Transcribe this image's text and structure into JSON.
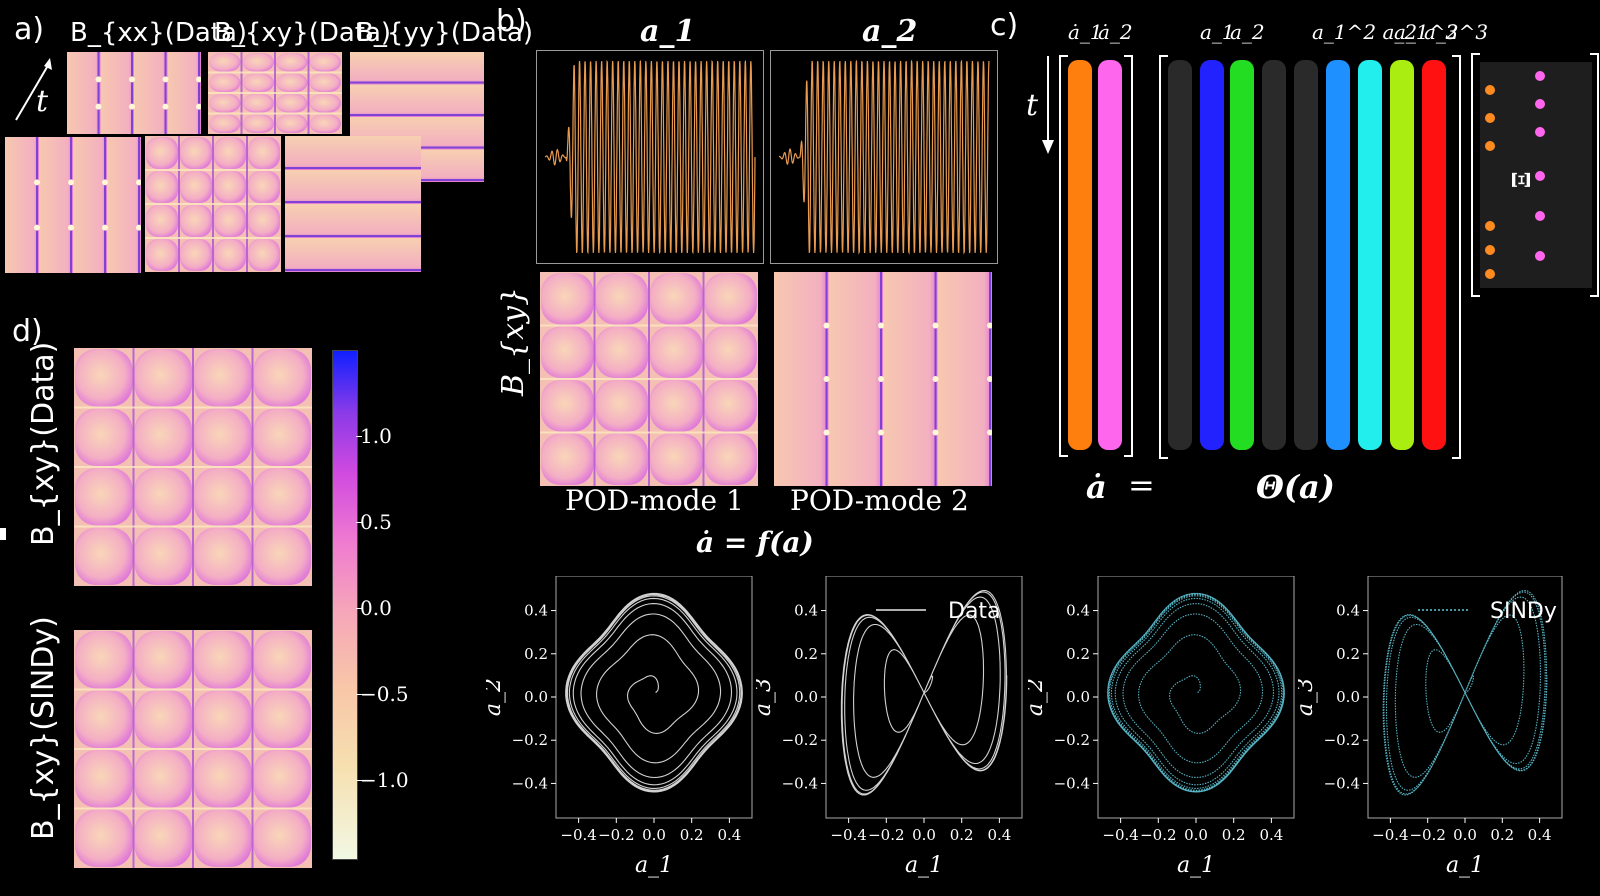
{
  "panel_labels": {
    "a": "a)",
    "b": "b)",
    "c": "c)",
    "d": "d)"
  },
  "panel_a": {
    "snapshot_titles": [
      "B_{xx}(Data)",
      "B_{xy}(Data)",
      "B_{yy}(Data)"
    ],
    "time_label": "t"
  },
  "panel_b": {
    "signal_titles": [
      "a_1",
      "a_2"
    ],
    "row_label": "B_{xy}",
    "mode_captions": [
      "POD-mode 1",
      "POD-mode 2"
    ],
    "equation": "ȧ = f(a)"
  },
  "panel_c": {
    "time_label": "t",
    "lhs_headers": [
      "ȧ_1",
      "ȧ_2"
    ],
    "library_headers": [
      "a_1",
      "a_2",
      "a_1^2 a_2",
      "a_1^3",
      "a_2^3"
    ],
    "xi_label": "Ξ",
    "lhs_label": "ȧ",
    "equals": "=",
    "rhs_label": "Θ(a)",
    "column_colors": [
      "#ff7f0e",
      "#ff66ee",
      "#2a2a2a",
      "#2222ff",
      "#22dd22",
      "#2a2a2a",
      "#2a2a2a",
      "#1e90ff",
      "#22eeee",
      "#aaee11",
      "#ff1111"
    ]
  },
  "panel_d": {
    "row_labels": [
      "B_{xy}(Data)",
      "B_{xy}(SINDy)"
    ],
    "colorbar_ticks": [
      "1.0",
      "0.5",
      "0.0",
      "−0.5",
      "−1.0"
    ]
  },
  "phase_plots": {
    "legend": [
      "Data",
      "SINDy"
    ],
    "xlabel": "a_1",
    "ylabels": [
      "a_2",
      "a_3",
      "a_2",
      "a_3"
    ],
    "x_ticks": [
      "−0.4",
      "−0.2",
      "0.0",
      "0.2",
      "0.4"
    ],
    "y_ticks": [
      "0.4",
      "0.2",
      "0.0",
      "−0.2",
      "−0.4"
    ],
    "colors": {
      "data": "#e8e8e8",
      "sindy": "#5fc7d8"
    }
  }
}
